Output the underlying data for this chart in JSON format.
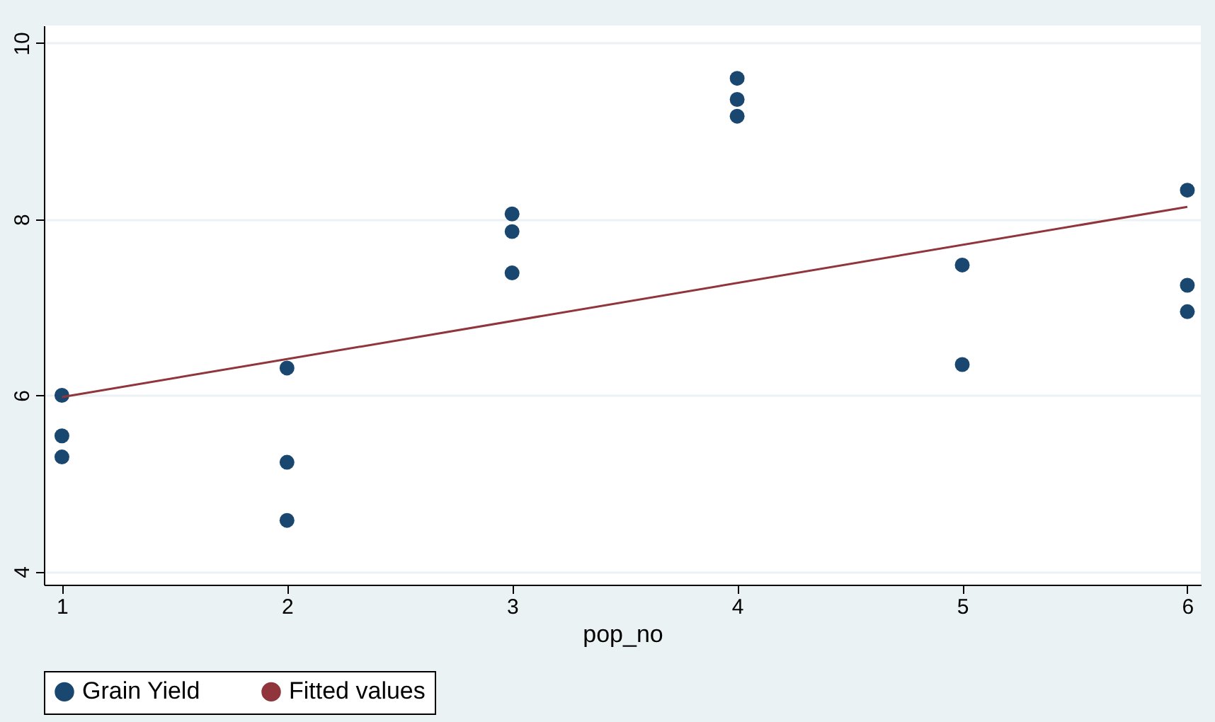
{
  "chart_data": {
    "type": "scatter",
    "xlabel": "pop_no",
    "xlim": [
      0.92,
      6.06
    ],
    "ylim": [
      3.85,
      10.2
    ],
    "xticks": [
      1,
      2,
      3,
      4,
      5,
      6
    ],
    "yticks": [
      4,
      6,
      8,
      10
    ],
    "grid": "y",
    "legend": "bottom",
    "series": [
      {
        "name": "Grain Yield",
        "marker": "circle",
        "color": "#1a476f",
        "x": [
          1,
          1,
          1,
          2,
          2,
          2,
          3,
          3,
          3,
          4,
          4,
          4,
          5,
          5,
          6,
          6,
          6
        ],
        "values": [
          6.0,
          5.54,
          5.3,
          6.31,
          5.24,
          4.58,
          8.06,
          7.86,
          7.39,
          9.6,
          9.36,
          9.17,
          7.48,
          6.35,
          8.33,
          7.25,
          6.95
        ]
      },
      {
        "name": "Fitted values",
        "type": "line",
        "color": "#90353b",
        "x": [
          1,
          6
        ],
        "values": [
          5.98,
          8.14
        ]
      }
    ]
  }
}
